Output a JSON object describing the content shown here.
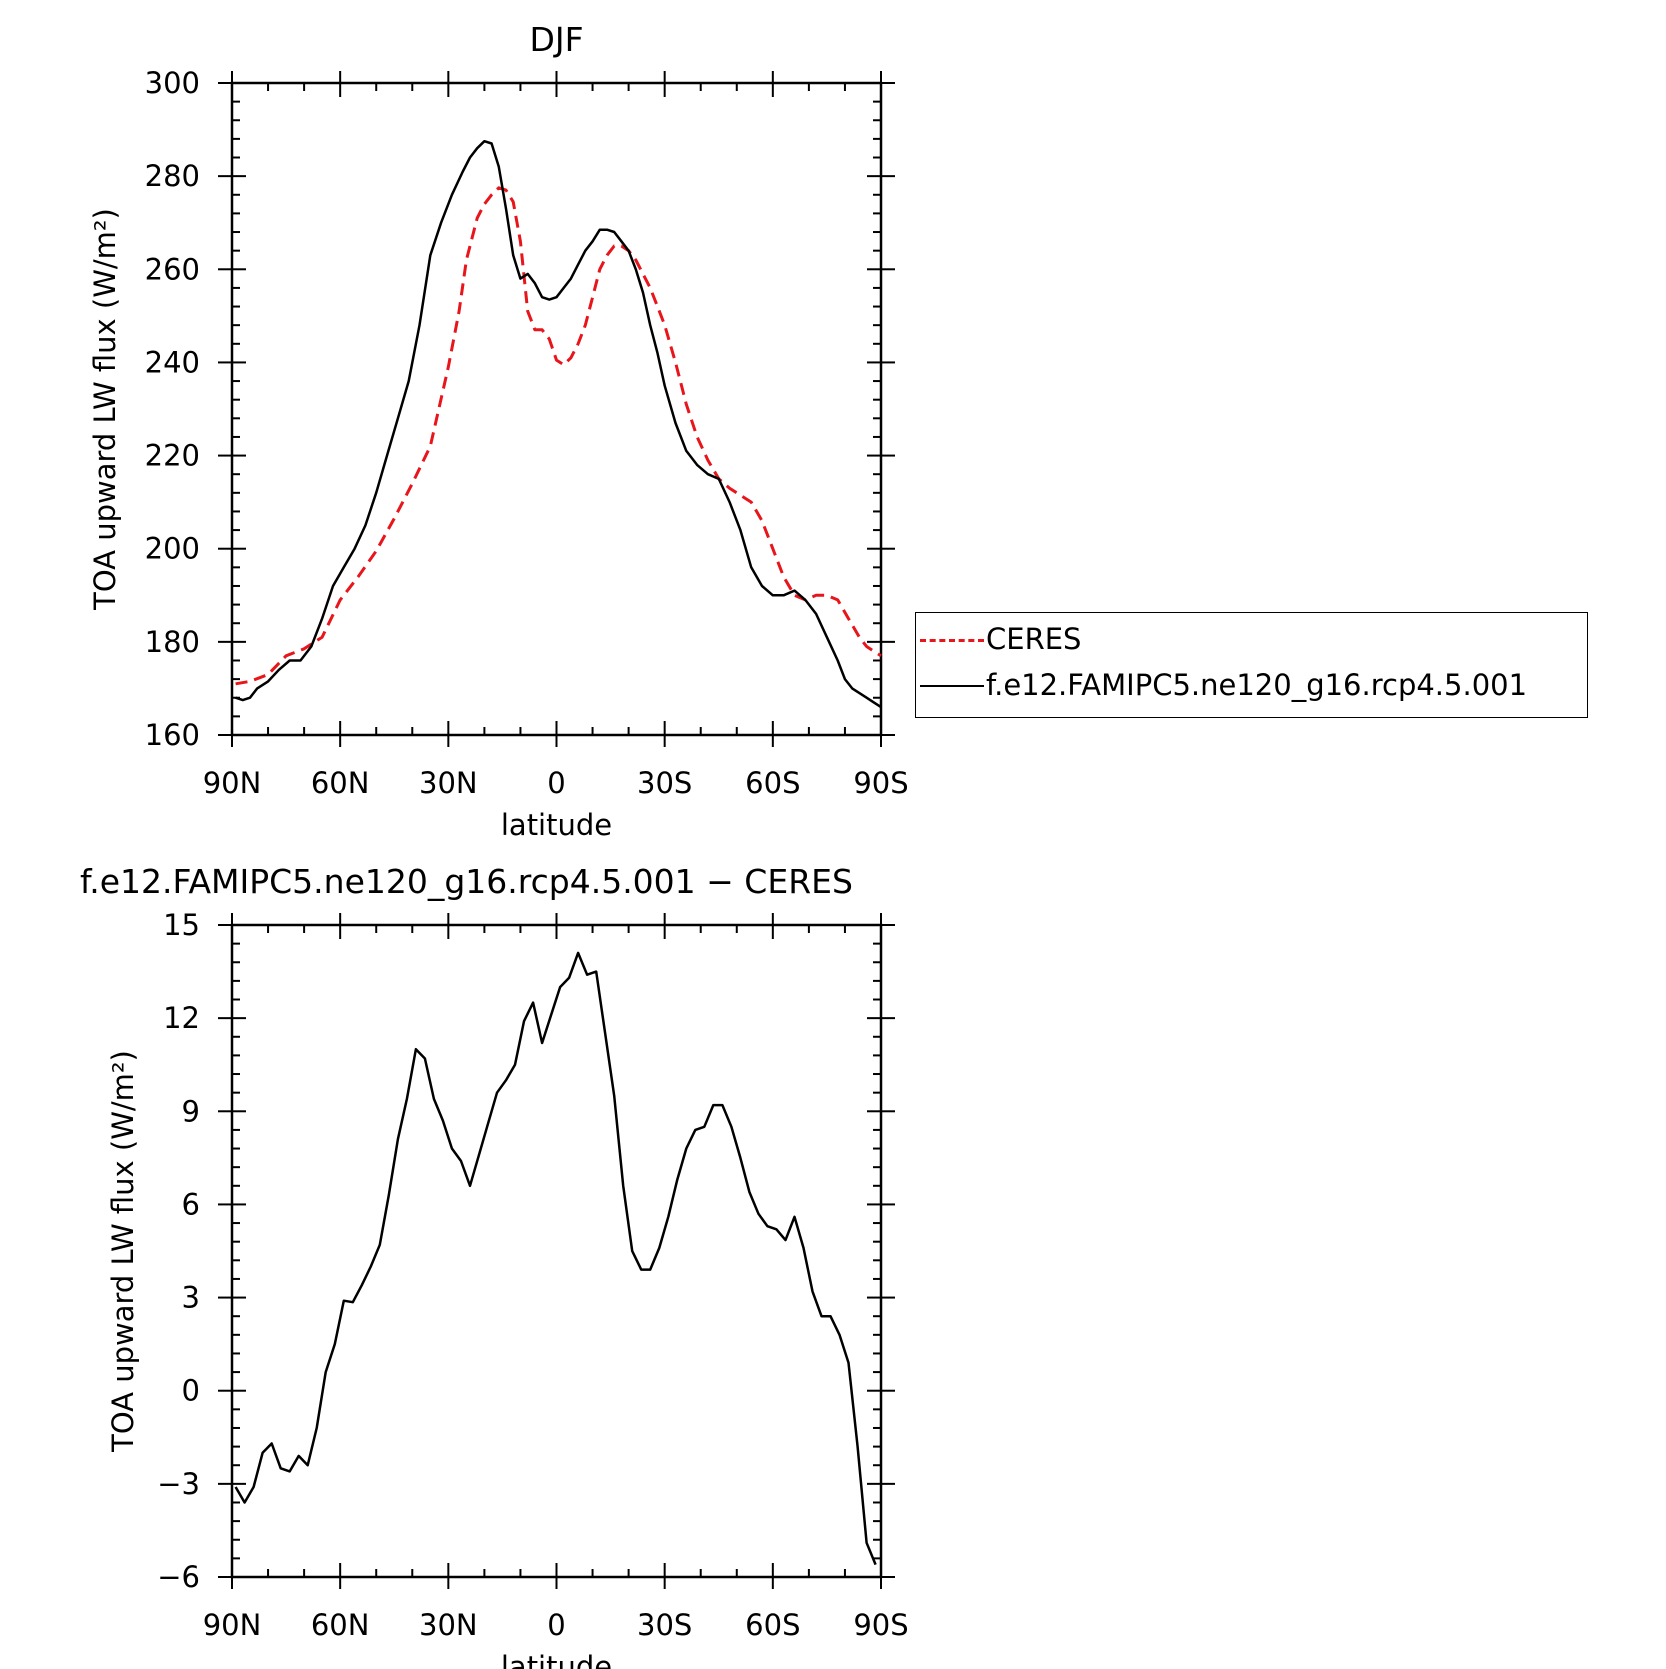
{
  "chart_data": [
    {
      "type": "line",
      "title": "DJF",
      "xlabel": "latitude",
      "ylabel": "TOA upward LW flux (W/m²)",
      "xlim": [
        90,
        -90
      ],
      "ylim": [
        160,
        300
      ],
      "xticks": [
        90,
        60,
        30,
        0,
        -30,
        -60,
        -90
      ],
      "xtick_labels": [
        "90N",
        "60N",
        "30N",
        "0",
        "30S",
        "60S",
        "90S"
      ],
      "yticks": [
        160,
        180,
        200,
        220,
        240,
        260,
        280,
        300
      ],
      "ytick_labels": [
        "160",
        "180",
        "200",
        "220",
        "240",
        "260",
        "280",
        "300"
      ],
      "grid": false,
      "legend": "outside-right",
      "series": [
        {
          "name": "CERES",
          "color": "#e8151b",
          "dash": true,
          "x": [
            89,
            85,
            80,
            75,
            70,
            65,
            60,
            55,
            50,
            45,
            40,
            35,
            30,
            27,
            25,
            22,
            20,
            18,
            16,
            14,
            12,
            10,
            8,
            6,
            4,
            2,
            0,
            -2,
            -4,
            -6,
            -8,
            -10,
            -12,
            -14,
            -16,
            -18,
            -20,
            -22,
            -24,
            -26,
            -28,
            -30,
            -33,
            -36,
            -39,
            -42,
            -45,
            -48,
            -51,
            -54,
            -57,
            -60,
            -63,
            -66,
            -69,
            -72,
            -75,
            -78,
            -81,
            -84,
            -86,
            -88,
            -90
          ],
          "y": [
            171,
            171.5,
            173,
            177,
            178.5,
            181,
            189,
            194,
            199.5,
            206.5,
            214,
            222,
            239,
            251,
            262,
            271,
            274,
            276,
            277.5,
            277,
            274.5,
            266,
            251,
            247,
            247,
            245,
            240.5,
            239.5,
            241,
            244,
            248,
            254,
            260,
            263,
            265,
            265,
            264,
            262,
            259,
            256,
            252,
            248,
            240,
            231,
            224,
            219,
            215,
            213,
            211.5,
            210,
            206,
            200,
            194,
            190,
            189,
            190,
            190,
            189,
            185,
            181,
            179,
            178,
            177
          ]
        },
        {
          "name": "f.e12.FAMIPC5.ne120_g16.rcp4.5.001",
          "color": "#000000",
          "dash": false,
          "x": [
            89,
            87,
            85,
            83,
            80,
            77,
            74,
            71,
            68,
            65,
            62,
            59,
            56,
            53,
            50,
            47,
            44,
            41,
            38,
            35,
            32,
            29,
            26,
            24,
            22,
            20,
            18,
            16,
            14,
            12,
            10,
            8,
            6,
            4,
            2,
            0,
            -2,
            -4,
            -6,
            -8,
            -10,
            -12,
            -14,
            -16,
            -18,
            -20,
            -22,
            -24,
            -26,
            -28,
            -30,
            -33,
            -36,
            -39,
            -42,
            -45,
            -48,
            -51,
            -54,
            -57,
            -60,
            -63,
            -66,
            -69,
            -72,
            -75,
            -78,
            -80,
            -82,
            -84,
            -86,
            -88,
            -90
          ],
          "y": [
            168,
            167.5,
            168,
            170,
            171.5,
            174,
            176,
            176,
            179,
            185,
            192,
            196,
            200,
            205,
            212,
            220,
            228,
            236,
            248,
            263,
            270,
            276,
            281,
            284,
            286,
            287.5,
            287,
            282,
            273,
            263,
            258,
            259,
            257,
            254,
            253.5,
            254,
            256,
            258,
            261,
            264,
            266,
            268.5,
            268.5,
            268,
            266,
            264,
            260,
            255,
            248,
            242,
            235,
            227,
            221,
            218,
            216,
            215,
            210,
            204,
            196,
            192,
            190,
            190,
            191,
            189,
            186,
            181,
            176,
            172,
            170,
            169,
            168,
            167,
            166
          ]
        }
      ]
    },
    {
      "type": "line",
      "title": "f.e12.FAMIPC5.ne120_g16.rcp4.5.001 − CERES",
      "xlabel": "latitude",
      "ylabel": "TOA upward LW flux (W/m²)",
      "xlim": [
        90,
        -90
      ],
      "ylim": [
        -6,
        15
      ],
      "xticks": [
        90,
        60,
        30,
        0,
        -30,
        -60,
        -90
      ],
      "xtick_labels": [
        "90N",
        "60N",
        "30N",
        "0",
        "30S",
        "60S",
        "90S"
      ],
      "yticks": [
        -6,
        -3,
        0,
        3,
        6,
        9,
        12,
        15
      ],
      "ytick_labels": [
        "−6",
        "−3",
        "0",
        "3",
        "6",
        "9",
        "12",
        "15"
      ],
      "grid": false,
      "series": [
        {
          "color": "#000000",
          "dash": false,
          "x": [
            89,
            86.5,
            84,
            81.5,
            79,
            76.5,
            74,
            71.5,
            69,
            66.5,
            64,
            61.5,
            59,
            56.5,
            54,
            51.5,
            49,
            46.5,
            44,
            41.5,
            39,
            36.5,
            34,
            31.5,
            29,
            26.5,
            24,
            21.5,
            19,
            16.5,
            14,
            11.5,
            9,
            6.5,
            4,
            1.5,
            -1,
            -3.5,
            -6,
            -8.5,
            -11,
            -13.5,
            -16,
            -18.5,
            -21,
            -23.5,
            -26,
            -28.5,
            -31,
            -33.5,
            -36,
            -38.5,
            -41,
            -43.5,
            -46,
            -48.5,
            -51,
            -53.5,
            -56,
            -58.5,
            -61,
            -63.5,
            -66,
            -68.5,
            -71,
            -73.5,
            -76,
            -78.5,
            -81,
            -83.5,
            -86,
            -88.5
          ],
          "y": [
            -3.1,
            -3.6,
            -3.1,
            -2.0,
            -1.7,
            -2.5,
            -2.6,
            -2.1,
            -2.4,
            -1.2,
            0.6,
            1.5,
            2.9,
            2.85,
            3.4,
            4.0,
            4.7,
            6.3,
            8.1,
            9.4,
            11.0,
            10.7,
            9.4,
            8.7,
            7.8,
            7.4,
            6.6,
            7.6,
            8.6,
            9.6,
            10.0,
            10.5,
            11.9,
            12.5,
            11.2,
            12.1,
            13.0,
            13.3,
            14.1,
            13.4,
            13.5,
            11.5,
            9.5,
            6.6,
            4.5,
            3.9,
            3.9,
            4.6,
            5.6,
            6.8,
            7.8,
            8.4,
            8.5,
            9.2,
            9.2,
            8.5,
            7.5,
            6.4,
            5.7,
            5.3,
            5.2,
            4.85,
            5.6,
            4.6,
            3.2,
            2.4,
            2.4,
            1.8,
            0.9,
            -1.8,
            -4.9,
            -5.6
          ]
        }
      ]
    }
  ],
  "legend": {
    "entries": [
      {
        "label": "CERES",
        "color": "#e8151b",
        "dash": true
      },
      {
        "label": "f.e12.FAMIPC5.ne120_g16.rcp4.5.001",
        "color": "#000000",
        "dash": false
      }
    ]
  }
}
